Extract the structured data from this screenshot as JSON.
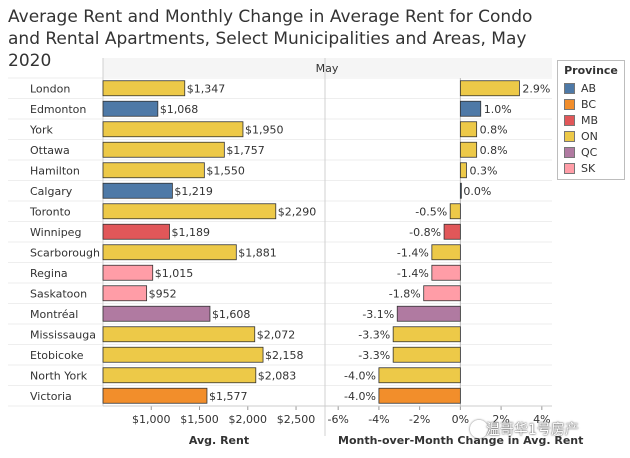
{
  "chart_data": {
    "title": "Average Rent and Monthly Change in Average Rent for Condo and Rental Apartments, Select Municipalities and Areas, May 2020",
    "header": "May",
    "categories": [
      "London",
      "Edmonton",
      "York",
      "Ottawa",
      "Hamilton",
      "Calgary",
      "Toronto",
      "Winnipeg",
      "Scarborough",
      "Regina",
      "Saskatoon",
      "Montréal",
      "Mississauga",
      "Etobicoke",
      "North York",
      "Victoria"
    ],
    "provinces": [
      "ON",
      "AB",
      "ON",
      "ON",
      "ON",
      "AB",
      "ON",
      "MB",
      "ON",
      "SK",
      "SK",
      "QC",
      "ON",
      "ON",
      "ON",
      "BC"
    ],
    "charts": [
      {
        "type": "bar",
        "xlabel": "Avg. Rent",
        "values": [
          1347,
          1068,
          1950,
          1757,
          1550,
          1219,
          2290,
          1189,
          1881,
          1015,
          952,
          1608,
          2072,
          2158,
          2083,
          1577
        ],
        "labels": [
          "$1,347",
          "$1,068",
          "$1,950",
          "$1,757",
          "$1,550",
          "$1,219",
          "$2,290",
          "$1,189",
          "$1,881",
          "$1,015",
          "$952",
          "$1,608",
          "$2,072",
          "$2,158",
          "$2,083",
          "$1,577"
        ],
        "xlim": [
          500,
          2800
        ],
        "ticks": [
          1000,
          1500,
          2000,
          2500
        ],
        "tick_labels": [
          "$1,000",
          "$1,500",
          "$2,000",
          "$2,500"
        ]
      },
      {
        "type": "bar",
        "xlabel": "Month-over-Month Change in Avg. Rent",
        "values": [
          2.9,
          1.0,
          0.8,
          0.8,
          0.3,
          0.0,
          -0.5,
          -0.8,
          -1.4,
          -1.4,
          -1.8,
          -3.1,
          -3.3,
          -3.3,
          -4.0,
          -4.0
        ],
        "labels": [
          "2.9%",
          "1.0%",
          "0.8%",
          "0.8%",
          "0.3%",
          "0.0%",
          "-0.5%",
          "-0.8%",
          "-1.4%",
          "-1.4%",
          "-1.8%",
          "-3.1%",
          "-3.3%",
          "-3.3%",
          "-4.0%",
          "-4.0%"
        ],
        "xlim": [
          -6.5,
          4.5
        ],
        "ticks": [
          -6,
          -4,
          -2,
          0,
          2,
          4
        ],
        "tick_labels": [
          "-6%",
          "-4%",
          "-2%",
          "0%",
          "2%",
          "4%"
        ]
      }
    ],
    "legend": {
      "title": "Province",
      "items": [
        {
          "label": "AB",
          "color": "#4e79a7"
        },
        {
          "label": "BC",
          "color": "#f28e2b"
        },
        {
          "label": "MB",
          "color": "#e15759"
        },
        {
          "label": "ON",
          "color": "#edc948"
        },
        {
          "label": "QC",
          "color": "#b07aa1"
        },
        {
          "label": "SK",
          "color": "#ff9da7"
        }
      ]
    }
  },
  "watermark": "温哥华1号房产"
}
